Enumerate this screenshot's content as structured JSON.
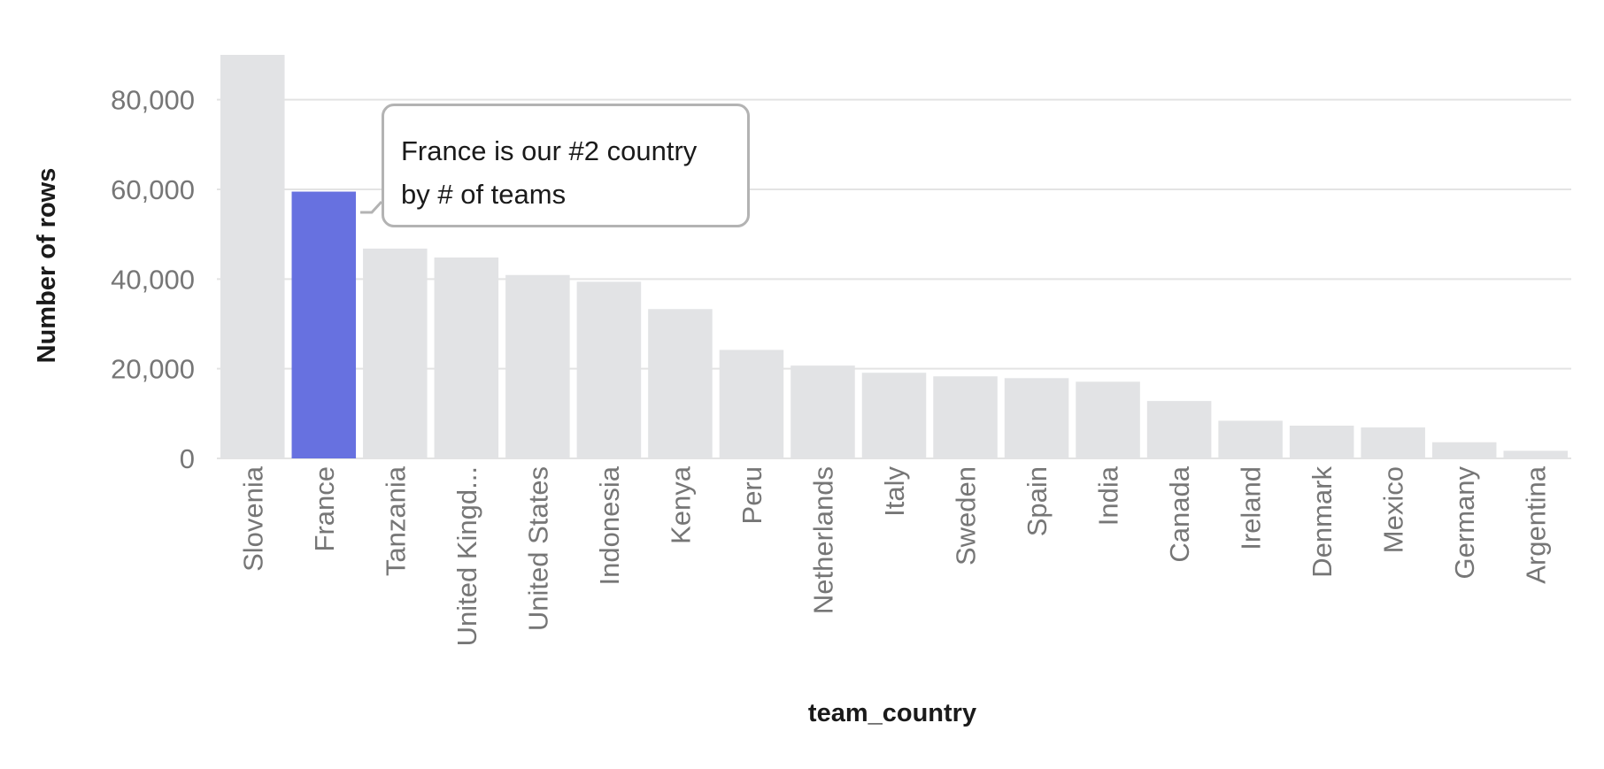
{
  "chart_data": {
    "type": "bar",
    "categories": [
      "Slovenia",
      "France",
      "Tanzania",
      "United Kingd...",
      "United States",
      "Indonesia",
      "Kenya",
      "Peru",
      "Netherlands",
      "Italy",
      "Sweden",
      "Spain",
      "India",
      "Canada",
      "Ireland",
      "Denmark",
      "Mexico",
      "Germany",
      "Argentina"
    ],
    "values": [
      90000,
      59500,
      46800,
      44800,
      40900,
      39400,
      33300,
      24200,
      20700,
      19100,
      18300,
      17900,
      17100,
      12800,
      8400,
      7300,
      6900,
      3600,
      1700
    ],
    "highlight_category": "France",
    "xlabel": "team_country",
    "ylabel": "Number of rows",
    "ylim": [
      0,
      90000
    ],
    "yticks": [
      0,
      20000,
      40000,
      60000,
      80000
    ],
    "ytick_labels": [
      "0",
      "20,000",
      "40,000",
      "60,000",
      "80,000"
    ],
    "grid": true,
    "colors": {
      "bar": "#e2e3e5",
      "highlight": "#6771e0",
      "grid": "#e3e3e3",
      "tick_text": "#767676",
      "axis_title": "#1a1a1a"
    },
    "annotation": {
      "text": "France is our #2 country\nby # of teams",
      "target": "France"
    }
  }
}
